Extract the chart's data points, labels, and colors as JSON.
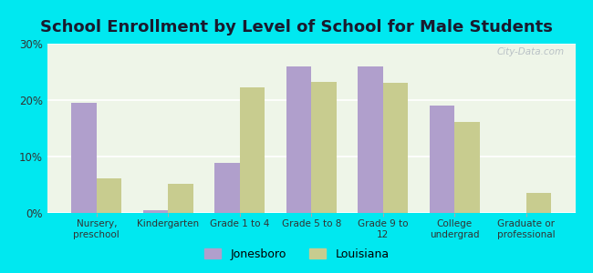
{
  "title": "School Enrollment by Level of School for Male Students",
  "categories": [
    "Nursery,\npreschool",
    "Kindergarten",
    "Grade 1 to 4",
    "Grade 5 to 8",
    "Grade 9 to\n12",
    "College\nundergrad",
    "Graduate or\nprofessional"
  ],
  "jonesboro": [
    19.5,
    0.5,
    8.8,
    26.0,
    26.0,
    19.0,
    0.0
  ],
  "louisiana": [
    6.2,
    5.2,
    22.2,
    23.2,
    23.0,
    16.2,
    3.5
  ],
  "jonesboro_color": "#b09fcc",
  "louisiana_color": "#c8cc8f",
  "background_outer": "#00e8f0",
  "background_inner": "#eef5e8",
  "title_fontsize": 13,
  "ylim": [
    0,
    30
  ],
  "yticks": [
    0,
    10,
    20,
    30
  ],
  "ytick_labels": [
    "0%",
    "10%",
    "20%",
    "30%"
  ],
  "legend_jonesboro": "Jonesboro",
  "legend_louisiana": "Louisiana",
  "watermark": "City-Data.com"
}
